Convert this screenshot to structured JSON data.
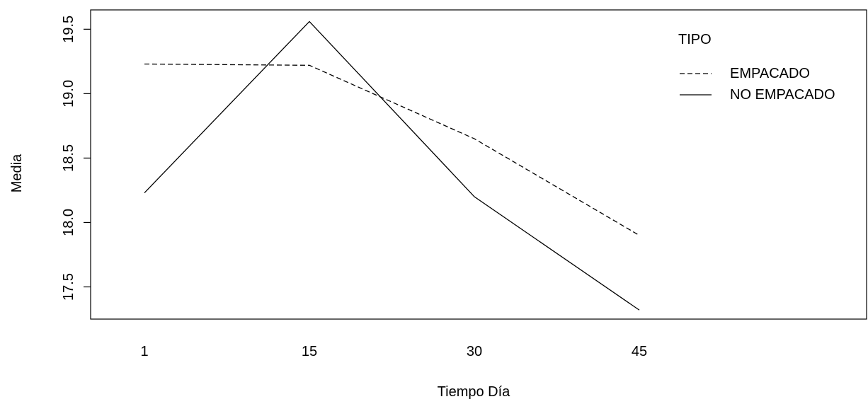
{
  "chart_data": {
    "type": "line",
    "title": "",
    "xlabel": "Tiempo Día",
    "ylabel": "Media",
    "categories": [
      "1",
      "15",
      "30",
      "45"
    ],
    "ylim": [
      17.25,
      19.65
    ],
    "yticks": [
      "17.5",
      "18.0",
      "18.5",
      "19.0",
      "19.5"
    ],
    "legend_title": "TIPO",
    "legend_position": "top-right",
    "grid": false,
    "series": [
      {
        "name": "EMPACADO",
        "line_style": "dashed",
        "color": "#000000",
        "values": [
          19.23,
          19.22,
          18.65,
          17.9
        ]
      },
      {
        "name": "NO EMPACADO",
        "line_style": "solid",
        "color": "#000000",
        "values": [
          18.23,
          19.56,
          18.2,
          17.32
        ]
      }
    ]
  }
}
